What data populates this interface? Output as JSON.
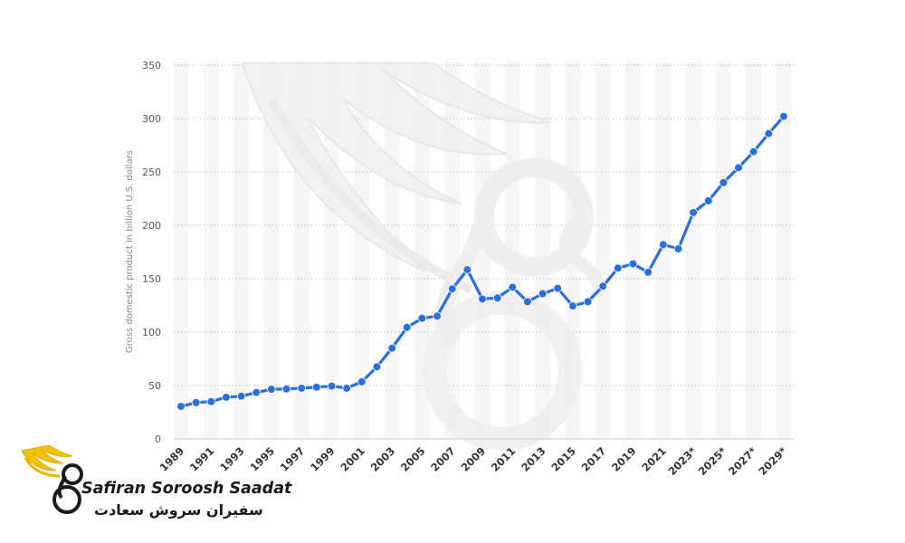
{
  "chart_data": {
    "type": "line",
    "title": "",
    "xlabel": "",
    "ylabel": "Gross domestic product in billion U.S. dollars",
    "ylim": [
      0,
      350
    ],
    "yticks": [
      0,
      50,
      100,
      150,
      200,
      250,
      300,
      350
    ],
    "grid": true,
    "categories": [
      "1989",
      "1990",
      "1991",
      "1992",
      "1993",
      "1994",
      "1995",
      "1996",
      "1997",
      "1998",
      "1999",
      "2000",
      "2001",
      "2002",
      "2003",
      "2004",
      "2005",
      "2006",
      "2007",
      "2008",
      "2009",
      "2010",
      "2011",
      "2012",
      "2013",
      "2014",
      "2015",
      "2016",
      "2017",
      "2018",
      "2019",
      "2020",
      "2021",
      "2022",
      "2023*",
      "2024*",
      "2025*",
      "2026*",
      "2027*",
      "2028*",
      "2029*"
    ],
    "xtick_labels": [
      "1989",
      "1991",
      "1993",
      "1995",
      "1997",
      "1999",
      "2001",
      "2003",
      "2005",
      "2007",
      "2009",
      "2011",
      "2013",
      "2015",
      "2017",
      "2019",
      "2021",
      "2023*",
      "2025*",
      "2027*",
      "2029*"
    ],
    "series": [
      {
        "color": "#2a6fdb",
        "values": [
          30.5,
          34,
          35,
          39,
          40,
          43.5,
          46.5,
          46.8,
          47.5,
          48.5,
          49.5,
          47.5,
          53.5,
          67.5,
          85,
          104.5,
          113,
          115,
          140.5,
          158.5,
          131,
          132,
          142,
          128.5,
          136,
          141,
          124.5,
          128.5,
          143,
          160,
          164,
          156,
          182,
          178,
          212,
          223,
          240,
          254,
          269,
          286,
          302
        ]
      }
    ]
  },
  "watermark": {
    "name": "wing-swirl-watermark"
  },
  "brand": {
    "name_en": "Safiran Soroosh Saadat",
    "name_fa": "سفیران سروش سعادت"
  }
}
